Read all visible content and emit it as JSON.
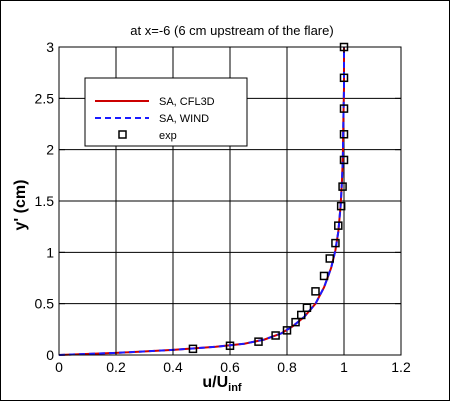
{
  "chart_data": {
    "type": "line",
    "title": "at x=-6 (6 cm upstream of the flare)",
    "xlabel": "u/U",
    "xlabel_sub": "inf",
    "ylabel": "y' (cm)",
    "xlim": [
      0,
      1.2
    ],
    "ylim": [
      0,
      3
    ],
    "x_ticks": [
      "0",
      "0.2",
      "0.4",
      "0.6",
      "0.8",
      "1",
      "1.2"
    ],
    "y_ticks": [
      "0",
      "0.5",
      "1",
      "1.5",
      "2",
      "2.5",
      "3"
    ],
    "grid": true,
    "legend_position": "upper-left",
    "series": [
      {
        "name": "SA, CFL3D",
        "style": "solid",
        "color": "#cc0000",
        "x": [
          0.0,
          0.2,
          0.4,
          0.55,
          0.65,
          0.72,
          0.78,
          0.82,
          0.86,
          0.9,
          0.93,
          0.955,
          0.97,
          0.98,
          0.988,
          0.993,
          0.996,
          0.998,
          1.0,
          1.0
        ],
        "y": [
          0.0,
          0.02,
          0.05,
          0.08,
          0.11,
          0.15,
          0.21,
          0.28,
          0.37,
          0.5,
          0.66,
          0.85,
          1.02,
          1.2,
          1.45,
          1.7,
          1.95,
          2.3,
          2.6,
          3.0
        ]
      },
      {
        "name": "SA, WIND",
        "style": "dashed",
        "color": "#1a1aff",
        "x": [
          0.0,
          0.2,
          0.4,
          0.55,
          0.65,
          0.72,
          0.78,
          0.82,
          0.86,
          0.9,
          0.93,
          0.955,
          0.97,
          0.98,
          0.988,
          0.993,
          0.996,
          0.998,
          1.0,
          1.0
        ],
        "y": [
          0.0,
          0.02,
          0.05,
          0.08,
          0.11,
          0.15,
          0.21,
          0.28,
          0.37,
          0.5,
          0.66,
          0.85,
          1.02,
          1.2,
          1.45,
          1.7,
          1.95,
          2.3,
          2.6,
          3.0
        ]
      },
      {
        "name": "exp",
        "style": "markers",
        "marker": "square",
        "x": [
          0.47,
          0.6,
          0.7,
          0.76,
          0.8,
          0.83,
          0.85,
          0.87,
          0.9,
          0.93,
          0.95,
          0.97,
          0.98,
          0.99,
          0.995,
          1.0,
          1.0,
          1.0,
          1.0,
          1.0
        ],
        "y": [
          0.06,
          0.09,
          0.13,
          0.19,
          0.24,
          0.32,
          0.39,
          0.46,
          0.62,
          0.77,
          0.94,
          1.09,
          1.26,
          1.45,
          1.64,
          1.9,
          2.15,
          2.4,
          2.7,
          3.0
        ]
      }
    ]
  }
}
